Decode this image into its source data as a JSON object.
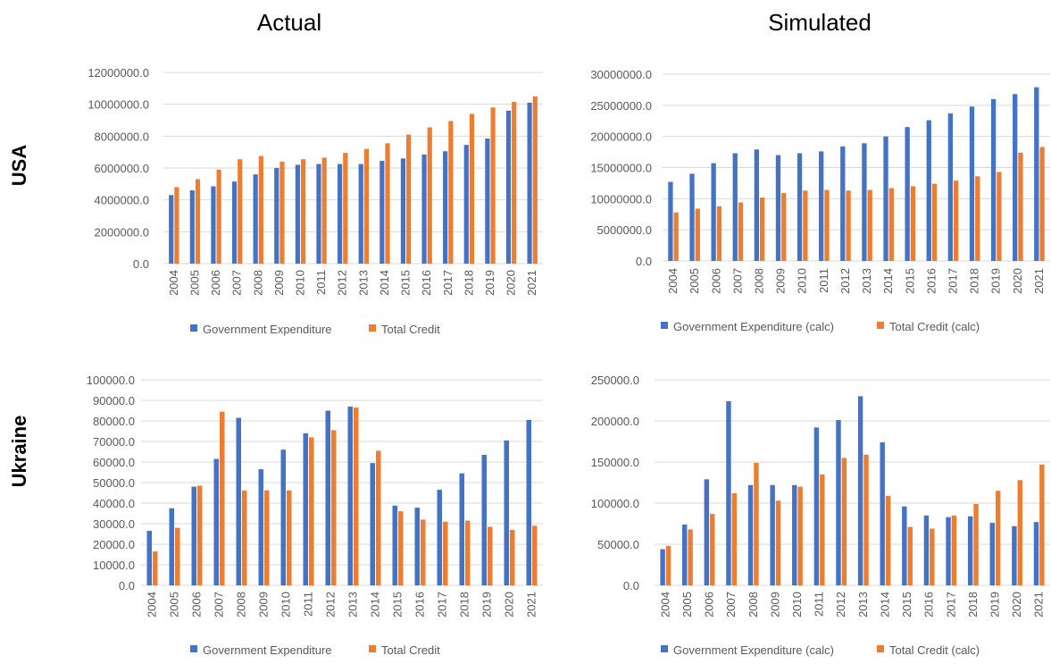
{
  "column_titles": [
    "Actual",
    "Simulated"
  ],
  "row_titles": [
    "USA",
    "Ukraine"
  ],
  "colors": {
    "series1": "#4472C4",
    "series2": "#ED7D31",
    "grid": "#D9D9D9",
    "tick": "#595959"
  },
  "chart_data": [
    {
      "type": "bar",
      "categories": [
        "2004",
        "2005",
        "2006",
        "2007",
        "2008",
        "2009",
        "2010",
        "2011",
        "2012",
        "2013",
        "2014",
        "2015",
        "2016",
        "2017",
        "2018",
        "2019",
        "2020",
        "2021"
      ],
      "ylim": [
        0,
        12000000
      ],
      "yticks": [
        "0.0",
        "2000000.0",
        "4000000.0",
        "6000000.0",
        "8000000.0",
        "10000000.0",
        "12000000.0"
      ],
      "ytick_values": [
        0,
        2000000,
        4000000,
        6000000,
        8000000,
        10000000,
        12000000
      ],
      "grid": true,
      "legend": "bottom",
      "series": [
        {
          "name": "Government Expenditure",
          "values": [
            4300000,
            4600000,
            4850000,
            5150000,
            5600000,
            6000000,
            6200000,
            6250000,
            6250000,
            6250000,
            6450000,
            6600000,
            6850000,
            7050000,
            7450000,
            7850000,
            9600000,
            10100000
          ]
        },
        {
          "name": "Total Credit",
          "values": [
            4800000,
            5300000,
            5900000,
            6550000,
            6750000,
            6400000,
            6550000,
            6650000,
            6950000,
            7200000,
            7550000,
            8100000,
            8550000,
            8950000,
            9400000,
            9800000,
            10150000,
            10500000
          ]
        }
      ]
    },
    {
      "type": "bar",
      "categories": [
        "2004",
        "2005",
        "2006",
        "2007",
        "2008",
        "2009",
        "2010",
        "2011",
        "2012",
        "2013",
        "2014",
        "2015",
        "2016",
        "2017",
        "2018",
        "2019",
        "2020",
        "2021"
      ],
      "ylim": [
        0,
        30000000
      ],
      "yticks": [
        "0.0",
        "5000000.0",
        "10000000.0",
        "15000000.0",
        "20000000.0",
        "25000000.0",
        "30000000.0"
      ],
      "ytick_values": [
        0,
        5000000,
        10000000,
        15000000,
        20000000,
        25000000,
        30000000
      ],
      "grid": true,
      "legend": "bottom",
      "series": [
        {
          "name": "Government Expenditure (calc)",
          "values": [
            12700000,
            14000000,
            15700000,
            17300000,
            17900000,
            17000000,
            17300000,
            17600000,
            18400000,
            18900000,
            20000000,
            21500000,
            22600000,
            23700000,
            24800000,
            26000000,
            26800000,
            27900000
          ]
        },
        {
          "name": "Total Credit (calc)",
          "values": [
            7800000,
            8400000,
            8800000,
            9400000,
            10200000,
            10900000,
            11300000,
            11400000,
            11300000,
            11400000,
            11700000,
            12000000,
            12400000,
            12900000,
            13600000,
            14300000,
            17400000,
            18300000
          ]
        }
      ]
    },
    {
      "type": "bar",
      "categories": [
        "2004",
        "2005",
        "2006",
        "2007",
        "2008",
        "2009",
        "2010",
        "2011",
        "2012",
        "2013",
        "2014",
        "2015",
        "2016",
        "2017",
        "2018",
        "2019",
        "2020",
        "2021"
      ],
      "ylim": [
        0,
        100000
      ],
      "yticks": [
        "0.0",
        "10000.0",
        "20000.0",
        "30000.0",
        "40000.0",
        "50000.0",
        "60000.0",
        "70000.0",
        "80000.0",
        "90000.0",
        "100000.0"
      ],
      "ytick_values": [
        0,
        10000,
        20000,
        30000,
        40000,
        50000,
        60000,
        70000,
        80000,
        90000,
        100000
      ],
      "grid": true,
      "legend": "bottom",
      "series": [
        {
          "name": "Government Expenditure",
          "values": [
            26500,
            37500,
            48000,
            61500,
            81500,
            56500,
            66000,
            74000,
            85000,
            87000,
            59500,
            38800,
            37800,
            46500,
            54500,
            63500,
            70500,
            80500
          ]
        },
        {
          "name": "Total Credit",
          "values": [
            16500,
            28000,
            48500,
            84500,
            46200,
            46200,
            46200,
            72000,
            75500,
            86500,
            65500,
            36000,
            32000,
            31000,
            31500,
            28500,
            27000,
            29000
          ]
        }
      ]
    },
    {
      "type": "bar",
      "categories": [
        "2004",
        "2005",
        "2006",
        "2007",
        "2008",
        "2009",
        "2010",
        "2011",
        "2012",
        "2013",
        "2014",
        "2015",
        "2016",
        "2017",
        "2018",
        "2019",
        "2020",
        "2021"
      ],
      "ylim": [
        0,
        250000
      ],
      "yticks": [
        "0.0",
        "50000.0",
        "100000.0",
        "150000.0",
        "200000.0",
        "250000.0"
      ],
      "ytick_values": [
        0,
        50000,
        100000,
        150000,
        200000,
        250000
      ],
      "grid": true,
      "legend": "bottom",
      "series": [
        {
          "name": "Government Expenditure (calc)",
          "values": [
            44000,
            74000,
            129000,
            224000,
            122000,
            122000,
            122000,
            192000,
            201000,
            230000,
            174000,
            96000,
            85000,
            83000,
            84000,
            76000,
            72000,
            77000
          ]
        },
        {
          "name": "Total Credit (calc)",
          "values": [
            48000,
            68000,
            87000,
            112000,
            149000,
            103000,
            120000,
            135000,
            155000,
            159000,
            109000,
            71000,
            69000,
            85000,
            99000,
            115000,
            128000,
            147000
          ]
        }
      ]
    }
  ]
}
